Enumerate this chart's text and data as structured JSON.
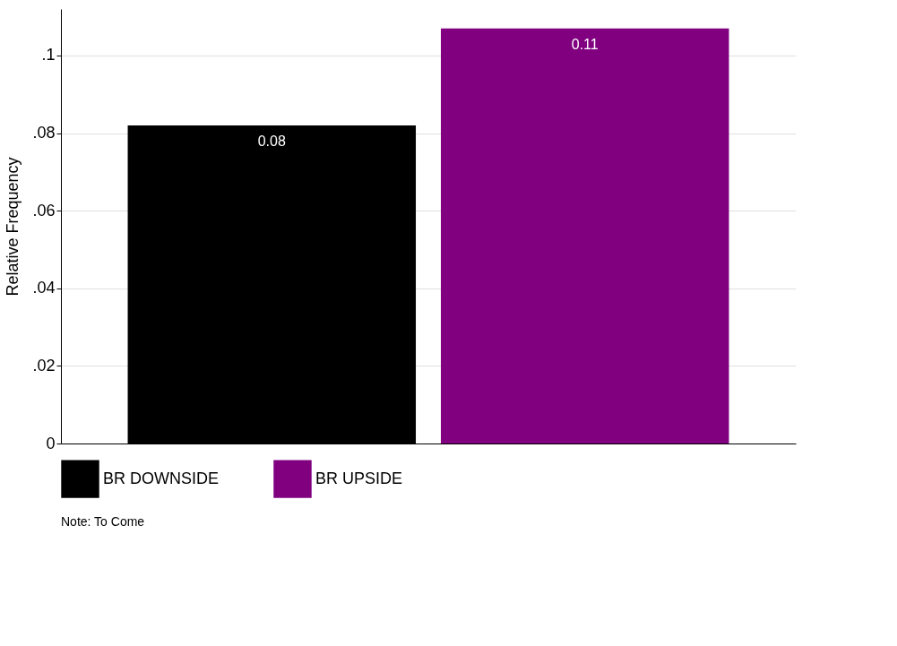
{
  "chart_data": {
    "type": "bar",
    "ylabel": "Relative Frequency",
    "categories": [
      null
    ],
    "series": [
      {
        "name": "BR DOWNSIDE",
        "color": "#000000",
        "values": [
          0.082
        ],
        "value_labels": [
          "0.08"
        ]
      },
      {
        "name": "BR UPSIDE",
        "color": "#800080",
        "values": [
          0.107
        ],
        "value_labels": [
          "0.11"
        ]
      }
    ],
    "ylim": [
      0,
      0.112
    ],
    "yticks": [
      {
        "value": 0,
        "label": "0"
      },
      {
        "value": 0.02,
        "label": ".02"
      },
      {
        "value": 0.04,
        "label": ".04"
      },
      {
        "value": 0.06,
        "label": ".06"
      },
      {
        "value": 0.08,
        "label": ".08"
      },
      {
        "value": 0.1,
        "label": ".1"
      }
    ],
    "grid": "y",
    "legend": "bottom",
    "tick_labels": "y",
    "annotations": [
      "Note: To Come"
    ]
  }
}
